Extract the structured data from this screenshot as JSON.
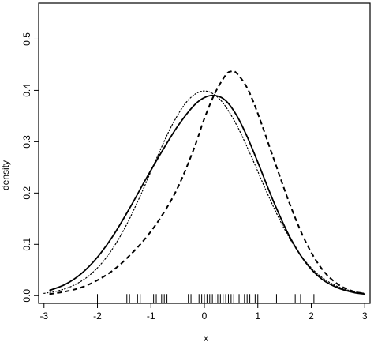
{
  "chart_data": {
    "type": "line",
    "title": "",
    "xlabel": "x",
    "ylabel": "density",
    "xlim": [
      -3.1,
      3.1
    ],
    "ylim": [
      -0.015,
      0.57
    ],
    "x_ticks": [
      -3,
      -2,
      -1,
      0,
      1,
      2,
      3
    ],
    "y_ticks": [
      0.0,
      0.1,
      0.2,
      0.3,
      0.4,
      0.5
    ],
    "x_tick_labels": [
      "-3",
      "-2",
      "-1",
      "0",
      "1",
      "2",
      "3"
    ],
    "y_tick_labels": [
      "0.0",
      "0.1",
      "0.2",
      "0.3",
      "0.4",
      "0.5"
    ],
    "grid": false,
    "legend": "none",
    "series": [
      {
        "style": "solid",
        "x": [
          -2.9,
          -2.6,
          -2.3,
          -2.0,
          -1.7,
          -1.4,
          -1.1,
          -0.8,
          -0.5,
          -0.2,
          0.0,
          0.2,
          0.4,
          0.6,
          0.8,
          1.0,
          1.3,
          1.6,
          1.9,
          2.2,
          2.5,
          2.8,
          3.0
        ],
        "y": [
          0.01,
          0.022,
          0.043,
          0.075,
          0.118,
          0.17,
          0.226,
          0.28,
          0.33,
          0.37,
          0.386,
          0.39,
          0.38,
          0.352,
          0.31,
          0.26,
          0.182,
          0.114,
          0.064,
          0.032,
          0.015,
          0.006,
          0.003
        ]
      },
      {
        "style": "dashed",
        "x": [
          -2.9,
          -2.6,
          -2.3,
          -2.0,
          -1.7,
          -1.4,
          -1.1,
          -0.8,
          -0.5,
          -0.2,
          0.0,
          0.2,
          0.4,
          0.5,
          0.6,
          0.8,
          1.0,
          1.3,
          1.6,
          1.9,
          2.2,
          2.5,
          2.8,
          3.0
        ],
        "y": [
          0.003,
          0.008,
          0.016,
          0.03,
          0.05,
          0.078,
          0.112,
          0.155,
          0.21,
          0.285,
          0.345,
          0.395,
          0.43,
          0.437,
          0.434,
          0.405,
          0.355,
          0.266,
          0.178,
          0.104,
          0.052,
          0.022,
          0.008,
          0.004
        ]
      },
      {
        "style": "dotted",
        "x": [
          -3.0,
          -2.7,
          -2.4,
          -2.1,
          -1.8,
          -1.5,
          -1.2,
          -0.9,
          -0.6,
          -0.3,
          0.0,
          0.3,
          0.6,
          0.9,
          1.2,
          1.5,
          1.8,
          2.1,
          2.4,
          2.7,
          3.0
        ],
        "y": [
          0.0044,
          0.0104,
          0.0224,
          0.044,
          0.079,
          0.1295,
          0.1942,
          0.2661,
          0.3332,
          0.3814,
          0.3989,
          0.3814,
          0.3332,
          0.2661,
          0.1942,
          0.1295,
          0.079,
          0.044,
          0.0224,
          0.0104,
          0.0044
        ]
      }
    ],
    "rug": [
      -2.0,
      -1.45,
      -1.4,
      -1.25,
      -1.2,
      -0.95,
      -0.9,
      -0.8,
      -0.75,
      -0.7,
      -0.3,
      -0.25,
      -0.1,
      -0.05,
      0.0,
      0.05,
      0.1,
      0.15,
      0.2,
      0.25,
      0.3,
      0.35,
      0.4,
      0.45,
      0.5,
      0.55,
      0.65,
      0.75,
      0.8,
      0.85,
      0.95,
      1.0,
      1.35,
      1.7,
      1.8,
      2.05
    ]
  }
}
